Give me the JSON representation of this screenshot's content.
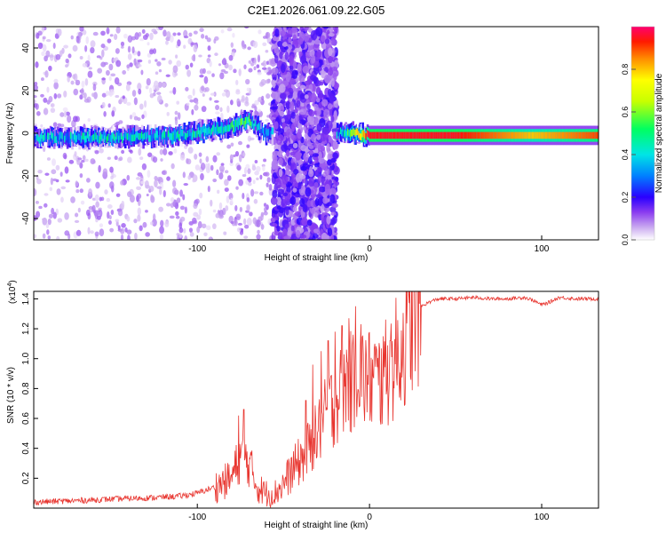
{
  "chart_data": [
    {
      "type": "heatmap",
      "title": "C2E1.2026.061.09.22.G05",
      "xlabel": "Height of straight line (km)",
      "ylabel": "Frequency (Hz)",
      "xlim": [
        -195,
        133
      ],
      "ylim": [
        -50,
        50
      ],
      "x_ticks": [
        -100,
        0,
        100
      ],
      "x_tick_labels": [
        "-100",
        "0",
        "100"
      ],
      "y_ticks": [
        -40,
        -20,
        0,
        20,
        40
      ],
      "y_tick_labels": [
        "-40",
        "-20",
        "0",
        "20",
        "40"
      ],
      "colorbar": {
        "label": "Normalized spectral amplitude",
        "range": [
          0,
          1
        ],
        "ticks": [
          0.0,
          0.2,
          0.4,
          0.6,
          0.8
        ],
        "tick_labels": [
          "0.0",
          "0.2",
          "0.4",
          "0.6",
          "0.8"
        ]
      },
      "ridge": [
        {
          "x": -195,
          "y": -2,
          "amp": 0.35
        },
        {
          "x": -150,
          "y": -2,
          "amp": 0.4
        },
        {
          "x": -110,
          "y": -1,
          "amp": 0.4
        },
        {
          "x": -80,
          "y": 3,
          "amp": 0.45
        },
        {
          "x": -70,
          "y": 6,
          "amp": 0.5
        },
        {
          "x": -60,
          "y": 0,
          "amp": 0.3
        },
        {
          "x": -15,
          "y": 0,
          "amp": 0.35
        },
        {
          "x": -10,
          "y": 0,
          "amp": 0.6
        },
        {
          "x": 0,
          "y": -1,
          "amp": 0.95
        },
        {
          "x": 50,
          "y": -1,
          "amp": 0.95
        },
        {
          "x": 95,
          "y": -1,
          "amp": 0.8
        },
        {
          "x": 133,
          "y": -1,
          "amp": 0.9
        }
      ],
      "noise_band": {
        "x_range": [
          -56,
          -19
        ],
        "y_range": [
          -50,
          50
        ]
      }
    },
    {
      "type": "line",
      "xlabel": "Height of straight line (km)",
      "ylabel": "SNR (10 * v/v)",
      "y_multiplier": "(x10",
      "y_multiplier_exp": "4",
      "y_multiplier_close": ")",
      "xlim": [
        -195,
        133
      ],
      "ylim": [
        0,
        1.45
      ],
      "x_ticks": [
        -100,
        0,
        100
      ],
      "x_tick_labels": [
        "-100",
        "0",
        "100"
      ],
      "y_ticks": [
        0.2,
        0.4,
        0.6,
        0.8,
        1.0,
        1.2,
        1.4
      ],
      "y_tick_labels": [
        "0.2",
        "0.4",
        "0.6",
        "0.8",
        "1.0",
        "1.2",
        "1.4"
      ],
      "color": "#e8352f",
      "series": [
        {
          "x": [
            -195,
            -170,
            -150,
            -125,
            -110,
            -100,
            -90,
            -80,
            -75,
            -70,
            -65,
            -60,
            -55,
            -50,
            -45,
            -40,
            -35,
            -30,
            -25,
            -20,
            -15,
            -12,
            -10,
            -8,
            -5,
            0,
            5,
            10,
            15,
            20,
            25,
            30,
            35,
            40,
            50,
            60,
            70,
            80,
            90,
            95,
            100,
            105,
            110,
            120,
            133
          ],
          "y": [
            0.04,
            0.05,
            0.06,
            0.07,
            0.08,
            0.1,
            0.14,
            0.2,
            0.35,
            0.3,
            0.14,
            0.1,
            0.1,
            0.16,
            0.25,
            0.32,
            0.4,
            0.5,
            0.62,
            0.72,
            0.8,
            0.9,
            0.78,
            0.98,
            0.88,
            0.86,
            0.84,
            0.9,
            1.0,
            1.1,
            1.25,
            1.35,
            1.38,
            1.4,
            1.4,
            1.41,
            1.4,
            1.4,
            1.41,
            1.39,
            1.36,
            1.38,
            1.41,
            1.4,
            1.4
          ]
        }
      ],
      "spikes": [
        {
          "x": -76,
          "y": 0.62
        },
        {
          "x": -73,
          "y": 0.66
        },
        {
          "x": -37,
          "y": 0.72
        },
        {
          "x": -33,
          "y": 0.96
        },
        {
          "x": -28,
          "y": 1.05
        },
        {
          "x": -24,
          "y": 1.12
        },
        {
          "x": -20,
          "y": 1.18
        },
        {
          "x": -16,
          "y": 1.22
        },
        {
          "x": -12,
          "y": 1.27
        },
        {
          "x": -8,
          "y": 1.35
        },
        {
          "x": -5,
          "y": 1.23
        },
        {
          "x": 3,
          "y": 1.1
        },
        {
          "x": 8,
          "y": 1.15
        },
        {
          "x": 12,
          "y": 1.12
        }
      ]
    }
  ]
}
